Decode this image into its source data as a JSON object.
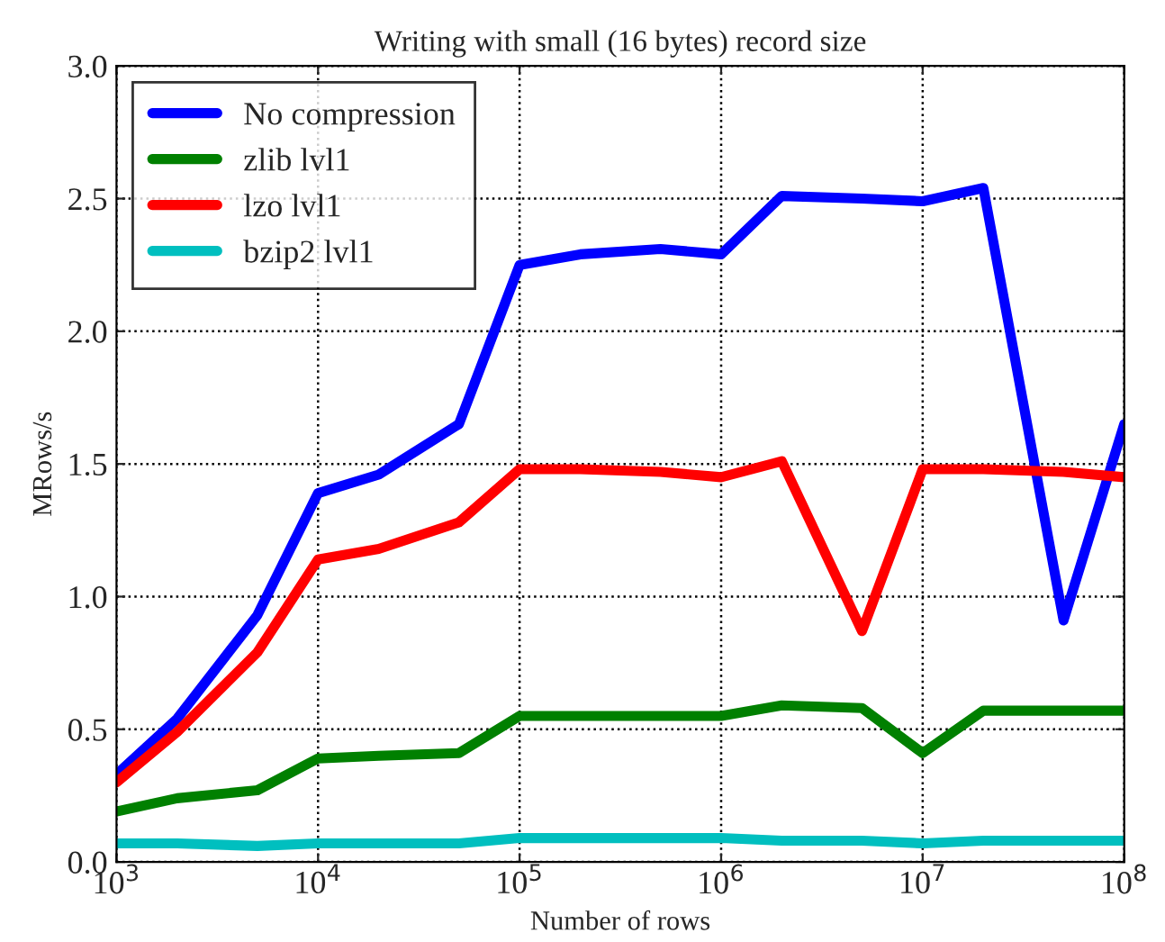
{
  "chart_data": {
    "type": "line",
    "title": "Writing with small (16 bytes) record size",
    "xlabel": "Number of rows",
    "ylabel": "MRows/s",
    "x": [
      1000,
      2000,
      5000,
      10000,
      20000,
      50000,
      100000,
      200000,
      500000,
      1000000,
      2000000,
      5000000,
      10000000,
      20000000,
      50000000,
      100000000
    ],
    "series": [
      {
        "name": "No compression",
        "color": "#0000ff",
        "values": [
          0.33,
          0.54,
          0.93,
          1.39,
          1.46,
          1.65,
          2.25,
          2.29,
          2.31,
          2.29,
          2.51,
          2.5,
          2.49,
          2.54,
          0.91,
          1.65
        ]
      },
      {
        "name": "zlib lvl1",
        "color": "#008000",
        "values": [
          0.19,
          0.24,
          0.27,
          0.39,
          0.4,
          0.41,
          0.55,
          0.55,
          0.55,
          0.55,
          0.59,
          0.58,
          0.41,
          0.57,
          0.57,
          0.57
        ]
      },
      {
        "name": "lzo lvl1",
        "color": "#ff0000",
        "values": [
          0.3,
          0.49,
          0.79,
          1.14,
          1.18,
          1.28,
          1.48,
          1.48,
          1.47,
          1.45,
          1.51,
          0.87,
          1.48,
          1.48,
          1.47,
          1.45
        ]
      },
      {
        "name": "bzip2 lvl1",
        "color": "#00bfbf",
        "values": [
          0.07,
          0.07,
          0.06,
          0.07,
          0.07,
          0.07,
          0.09,
          0.09,
          0.09,
          0.09,
          0.08,
          0.08,
          0.07,
          0.08,
          0.08,
          0.08
        ]
      }
    ],
    "log": "x",
    "xlim": [
      1000,
      100000000
    ],
    "xticks": [
      {
        "value": 1000,
        "label": "10$^{3}$"
      },
      {
        "value": 10000,
        "label": "10$^{4}$"
      },
      {
        "value": 100000,
        "label": "10$^{5}$"
      },
      {
        "value": 1000000,
        "label": "10$^{6}$"
      },
      {
        "value": 10000000,
        "label": "10$^{7}$"
      },
      {
        "value": 100000000,
        "label": "10$^{8}$"
      }
    ],
    "ylim": [
      0,
      3.0
    ],
    "yticks": [
      {
        "value": 0,
        "label": "0.0"
      },
      {
        "value": 0.5,
        "label": "0.5"
      },
      {
        "value": 1.0,
        "label": "1.0"
      },
      {
        "value": 1.5,
        "label": "1.5"
      },
      {
        "value": 2.0,
        "label": "2.0"
      },
      {
        "value": 2.5,
        "label": "2.5"
      },
      {
        "value": 3.0,
        "label": "3.0"
      }
    ],
    "grid": true,
    "legend": "top left",
    "line_style": "solid",
    "marker": "none"
  }
}
